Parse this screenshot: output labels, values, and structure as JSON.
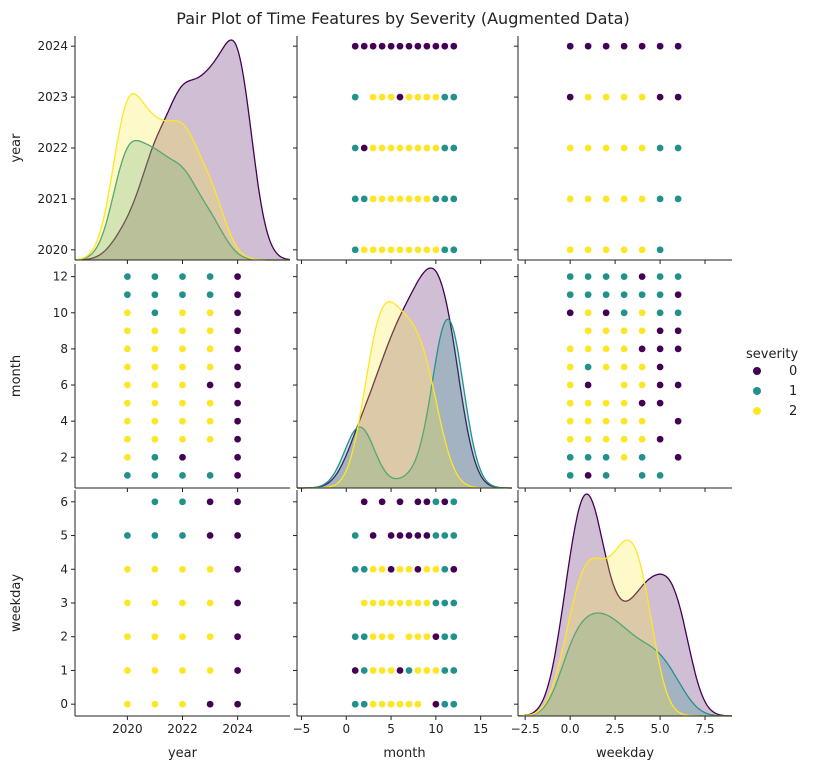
{
  "chart_data": {
    "type": "scatter",
    "title": "Pair Plot of Time Features by Severity (Augmented Data)",
    "variables": [
      "year",
      "month",
      "weekday"
    ],
    "legend": {
      "title": "severity",
      "placement": "right",
      "entries": [
        {
          "label": "0",
          "color": "#440154"
        },
        {
          "label": "1",
          "color": "#21918c"
        },
        {
          "label": "2",
          "color": "#fde725"
        }
      ]
    },
    "axes": {
      "year": {
        "range": [
          2018.1,
          2025.9
        ],
        "ticks": [
          "2020",
          "2022",
          "2024"
        ],
        "tick_values": [
          2020,
          2022,
          2024
        ],
        "y_ticks": [
          "2020",
          "2021",
          "2022",
          "2023",
          "2024"
        ],
        "y_tick_values": [
          2020,
          2021,
          2022,
          2023,
          2024
        ]
      },
      "month": {
        "range": [
          -5.5,
          18.5
        ],
        "ticks": [
          "−5",
          "0",
          "5",
          "10",
          "15"
        ],
        "tick_values": [
          -5,
          0,
          5,
          10,
          15
        ],
        "y_ticks": [
          "2",
          "4",
          "6",
          "8",
          "10",
          "12"
        ],
        "y_tick_values": [
          2,
          4,
          6,
          8,
          10,
          12
        ]
      },
      "weekday": {
        "range": [
          -2.9,
          9.0
        ],
        "ticks": [
          "−2.5",
          "0.0",
          "2.5",
          "5.0",
          "7.5"
        ],
        "tick_values": [
          -2.5,
          0,
          2.5,
          5,
          7.5
        ],
        "y_ticks": [
          "0",
          "1",
          "2",
          "3",
          "4",
          "5",
          "6"
        ],
        "y_tick_values": [
          0,
          1,
          2,
          3,
          4,
          5,
          6
        ]
      }
    },
    "y_display_range": {
      "year": [
        2019.8,
        2024.2
      ],
      "month": [
        0.3,
        12.7
      ],
      "weekday": [
        -0.35,
        6.35
      ]
    },
    "series": [
      {
        "name": "0",
        "color": "#440154",
        "points": [
          [
            2021,
            1,
            1
          ],
          [
            2024,
            1,
            1
          ],
          [
            2022,
            2,
            1
          ],
          [
            2020,
            3,
            1
          ],
          [
            2023,
            4,
            1
          ],
          [
            2024,
            5,
            1
          ],
          [
            2021,
            6,
            1
          ],
          [
            2022,
            7,
            1
          ],
          [
            2023,
            8,
            1
          ],
          [
            2024,
            9,
            1
          ],
          [
            2021,
            10,
            1
          ],
          [
            2022,
            11,
            1
          ],
          [
            2023,
            12,
            1
          ],
          [
            2024,
            2,
            6
          ],
          [
            2021,
            3,
            5
          ],
          [
            2022,
            4,
            6
          ],
          [
            2023,
            5,
            5
          ],
          [
            2024,
            6,
            6
          ],
          [
            2021,
            7,
            5
          ],
          [
            2022,
            8,
            6
          ],
          [
            2023,
            9,
            5
          ],
          [
            2024,
            10,
            6
          ],
          [
            2022,
            11,
            6
          ],
          [
            2023,
            12,
            6
          ],
          [
            2024,
            3,
            4
          ],
          [
            2022,
            4,
            3
          ],
          [
            2023,
            6,
            3
          ],
          [
            2024,
            7,
            4
          ],
          [
            2022,
            8,
            3
          ],
          [
            2023,
            9,
            2
          ],
          [
            2024,
            9,
            2
          ],
          [
            2024,
            10,
            3
          ],
          [
            2021,
            11,
            2
          ],
          [
            2022,
            12,
            3
          ],
          [
            2024,
            4,
            0
          ],
          [
            2023,
            7,
            1
          ],
          [
            2024,
            8,
            1
          ],
          [
            2023,
            9,
            6
          ],
          [
            2024,
            10,
            5
          ],
          [
            2024,
            11,
            0
          ],
          [
            2024,
            12,
            4
          ],
          [
            2024,
            5,
            2
          ],
          [
            2023,
            6,
            4
          ],
          [
            2023,
            11,
            0
          ],
          [
            2024,
            12,
            5
          ],
          [
            2021,
            8,
            0
          ],
          [
            2022,
            9,
            1
          ],
          [
            2021,
            9,
            6
          ],
          [
            2023,
            10,
            0
          ],
          [
            2022,
            10,
            2
          ],
          [
            2024,
            11,
            4
          ],
          [
            2020,
            11,
            1
          ],
          [
            2020,
            10,
            2
          ],
          [
            2021,
            12,
            0
          ],
          [
            2021,
            12,
            2
          ],
          [
            2022,
            6,
            5
          ],
          [
            2022,
            5,
            4
          ],
          [
            2022,
            8,
            4
          ],
          [
            2023,
            10,
            4
          ],
          [
            2024,
            6,
            0
          ],
          [
            2022,
            7,
            0
          ],
          [
            2024,
            8,
            5
          ],
          [
            2023,
            5,
            0
          ],
          [
            2024,
            1,
            0
          ]
        ]
      },
      {
        "name": "1",
        "color": "#21918c",
        "points": [
          [
            2020,
            1,
            0
          ],
          [
            2021,
            1,
            5
          ],
          [
            2022,
            1,
            2
          ],
          [
            2023,
            1,
            4
          ],
          [
            2020,
            2,
            1
          ],
          [
            2021,
            2,
            2
          ],
          [
            2020,
            11,
            1
          ],
          [
            2021,
            11,
            1
          ],
          [
            2022,
            11,
            3
          ],
          [
            2020,
            12,
            5
          ],
          [
            2021,
            12,
            3
          ],
          [
            2022,
            12,
            6
          ],
          [
            2020,
            10,
            5
          ],
          [
            2021,
            12,
            2
          ],
          [
            2022,
            11,
            4
          ],
          [
            2023,
            12,
            1
          ],
          [
            2020,
            12,
            2
          ],
          [
            2021,
            11,
            3
          ],
          [
            2022,
            12,
            1
          ],
          [
            2020,
            11,
            2
          ],
          [
            2021,
            10,
            6
          ],
          [
            2022,
            11,
            5
          ],
          [
            2023,
            11,
            4
          ],
          [
            2020,
            12,
            3
          ],
          [
            2021,
            2,
            4
          ],
          [
            2020,
            11,
            0
          ],
          [
            2021,
            12,
            0
          ],
          [
            2022,
            12,
            0
          ],
          [
            2023,
            7,
            1
          ],
          [
            2022,
            11,
            2
          ],
          [
            2020,
            10,
            3
          ],
          [
            2020,
            2,
            0
          ]
        ]
      },
      {
        "name": "2",
        "color": "#fde725",
        "points": [
          [
            2020,
            3,
            0
          ],
          [
            2021,
            4,
            1
          ],
          [
            2022,
            5,
            2
          ],
          [
            2020,
            6,
            3
          ],
          [
            2021,
            7,
            4
          ],
          [
            2022,
            8,
            1
          ],
          [
            2020,
            9,
            2
          ],
          [
            2020,
            4,
            1
          ],
          [
            2021,
            5,
            2
          ],
          [
            2022,
            6,
            3
          ],
          [
            2020,
            7,
            4
          ],
          [
            2021,
            8,
            0
          ],
          [
            2020,
            8,
            1
          ],
          [
            2020,
            5,
            3
          ],
          [
            2021,
            3,
            2
          ],
          [
            2022,
            4,
            1
          ],
          [
            2020,
            3,
            4
          ],
          [
            2021,
            6,
            0
          ],
          [
            2023,
            3,
            3
          ],
          [
            2023,
            4,
            2
          ],
          [
            2023,
            9,
            4
          ],
          [
            2023,
            5,
            1
          ],
          [
            2023,
            7,
            3
          ],
          [
            2020,
            4,
            0
          ],
          [
            2020,
            5,
            1
          ],
          [
            2021,
            4,
            3
          ],
          [
            2022,
            3,
            4
          ],
          [
            2022,
            5,
            0
          ],
          [
            2020,
            6,
            4
          ],
          [
            2020,
            2,
            3
          ],
          [
            2021,
            3,
            1
          ],
          [
            2022,
            4,
            4
          ],
          [
            2022,
            6,
            4
          ],
          [
            2020,
            7,
            0
          ],
          [
            2021,
            9,
            3
          ],
          [
            2022,
            10,
            4
          ],
          [
            2022,
            9,
            1
          ],
          [
            2020,
            8,
            3
          ],
          [
            2023,
            10,
            1
          ],
          [
            2023,
            8,
            2
          ],
          [
            2022,
            3,
            3
          ],
          [
            2021,
            3,
            4
          ],
          [
            2022,
            7,
            2
          ],
          [
            2020,
            9,
            3
          ],
          [
            2021,
            8,
            1
          ],
          [
            2020,
            10,
            4
          ]
        ]
      }
    ]
  }
}
